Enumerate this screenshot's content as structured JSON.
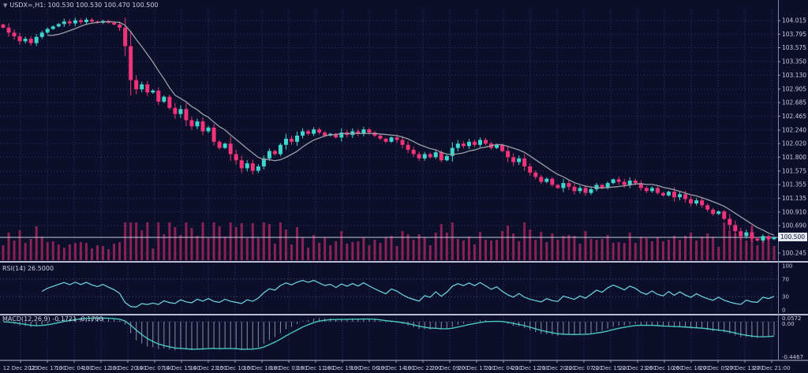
{
  "header": {
    "collapse_icon": "▼",
    "title": "USDX=,H1: 100.530 100.530 100.470 100.500"
  },
  "panels": {
    "rsi_label": "RSI(14) 26.5000",
    "macd_label": "MACD(12,26,9) -0.1721 -0.1700"
  },
  "price_tag": "100.500",
  "chart_data": {
    "type": "candlestick",
    "symbol": "USDX",
    "timeframe": "H1",
    "ohlc_quote": {
      "open": "100.530",
      "high": "100.530",
      "low": "100.470",
      "close": "100.500"
    },
    "current_price": 100.5,
    "ylim": [
      100.18,
      104.17
    ],
    "price_axis_labels": [
      "104.015",
      "103.795",
      "103.575",
      "103.350",
      "103.130",
      "102.905",
      "102.685",
      "102.465",
      "102.240",
      "102.020",
      "101.800",
      "101.575",
      "101.355",
      "101.135",
      "100.910",
      "100.690",
      "100.245"
    ],
    "x_labels": [
      "12 Dec 2023",
      "12 Dec 17:00",
      "13 Dec 04:00",
      "13 Dec 12:00",
      "13 Dec 20:00",
      "14 Dec 07:00",
      "14 Dec 15:00",
      "14 Dec 23:00",
      "15 Dec 10:00",
      "15 Dec 18:00",
      "18 Dec 03:00",
      "18 Dec 11:00",
      "18 Dec 19:00",
      "19 Dec 06:00",
      "19 Dec 14:00",
      "19 Dec 22:00",
      "20 Dec 09:00",
      "20 Dec 17:00",
      "21 Dec 04:00",
      "21 Dec 12:00",
      "21 Dec 20:00",
      "22 Dec 07:00",
      "22 Dec 15:00",
      "22 Dec 23:00",
      "26 Dec 10:00",
      "26 Dec 18:00",
      "27 Dec 05:00",
      "27 Dec 13:00",
      "27 Dec 21:00"
    ],
    "first_open": 103.95,
    "closes": [
      103.9,
      103.82,
      103.76,
      103.68,
      103.72,
      103.65,
      103.75,
      103.82,
      103.88,
      103.92,
      103.96,
      104.0,
      103.97,
      104.02,
      103.99,
      104.03,
      104.0,
      103.98,
      104.01,
      103.98,
      103.95,
      103.9,
      103.6,
      103.05,
      102.9,
      102.98,
      102.85,
      102.88,
      102.7,
      102.78,
      102.6,
      102.5,
      102.58,
      102.4,
      102.3,
      102.38,
      102.22,
      102.28,
      102.05,
      101.95,
      102.02,
      101.85,
      101.75,
      101.62,
      101.7,
      101.58,
      101.65,
      101.78,
      101.9,
      101.85,
      102.0,
      102.1,
      102.05,
      102.15,
      102.22,
      102.18,
      102.25,
      102.2,
      102.15,
      102.18,
      102.12,
      102.2,
      102.16,
      102.22,
      102.18,
      102.25,
      102.2,
      102.15,
      102.1,
      102.05,
      102.12,
      102.08,
      102.0,
      101.92,
      101.85,
      101.78,
      101.85,
      101.8,
      101.88,
      101.75,
      101.82,
      101.95,
      102.02,
      101.98,
      102.05,
      102.0,
      102.08,
      102.02,
      101.95,
      102.0,
      101.9,
      101.8,
      101.72,
      101.78,
      101.65,
      101.55,
      101.48,
      101.4,
      101.45,
      101.35,
      101.3,
      101.38,
      101.32,
      101.25,
      101.3,
      101.22,
      101.28,
      101.35,
      101.3,
      101.38,
      101.44,
      101.4,
      101.35,
      101.42,
      101.38,
      101.3,
      101.25,
      101.3,
      101.22,
      101.18,
      101.24,
      101.15,
      101.2,
      101.12,
      101.05,
      101.1,
      101.02,
      100.95,
      100.88,
      100.92,
      100.8,
      100.7,
      100.6,
      100.52,
      100.58,
      100.48,
      100.45,
      100.52,
      100.47,
      100.5
    ],
    "indicators": {
      "ma": {
        "render_period": 9
      },
      "rsi": {
        "period_label": 14,
        "render_period": 7,
        "ylim": [
          0,
          100
        ],
        "levels": [
          70,
          30
        ],
        "axis_labels": [
          "100",
          "70",
          "30",
          "0"
        ],
        "axis_values": [
          100,
          70,
          30,
          0
        ],
        "last_value": "26.5000"
      },
      "macd": {
        "params_label": "12,26,9",
        "render_fast": 7,
        "render_slow": 16,
        "render_signal": 5,
        "ylim": [
          -0.4467,
          0.0572
        ],
        "axis_top": "0.0572",
        "axis_zero": "0.00",
        "axis_bottom": "-0.4467",
        "last_macd": "-0.1721",
        "last_signal": "-0.1700"
      }
    },
    "colors": {
      "background": "#0b0f2a",
      "grid": "#2e3558",
      "level_line": "#4a5278",
      "bull": "#3fd6cf",
      "bear": "#f23378",
      "ma": "#9aa0a6",
      "volume": "#8c2156",
      "rsi_line": "#6fd9e7",
      "macd_line": "#49c7c0",
      "macd_hist": "#aab0c8",
      "axis_text": "#c7cbde",
      "separator": "#b9bdd4",
      "bid_line": "#c6c9da",
      "price_tag_bg": "#e4e6f0"
    }
  }
}
